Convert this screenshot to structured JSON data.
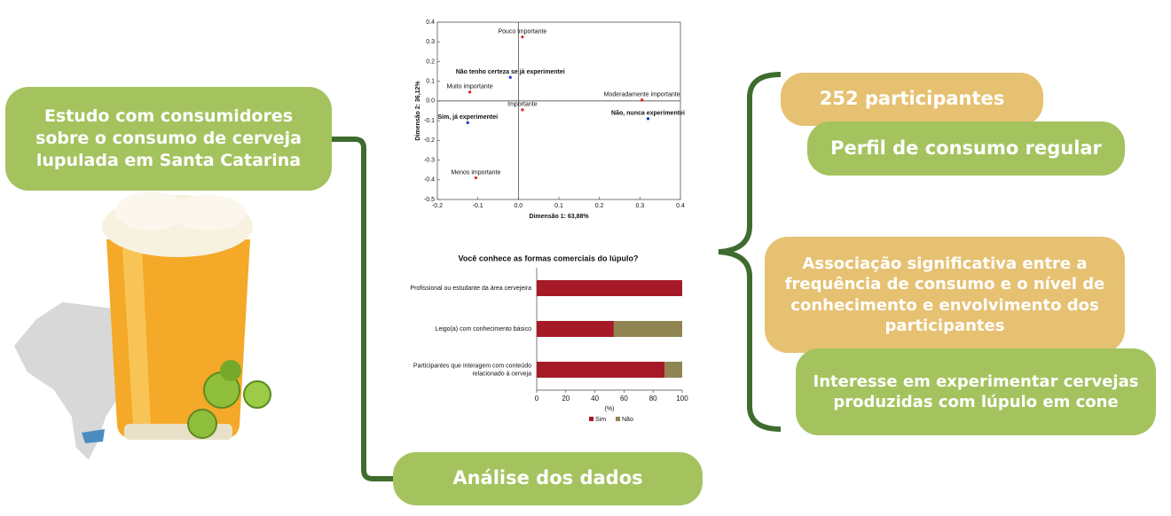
{
  "left_box": "Estudo com consumidores sobre o consumo de cerveja lupulada em Santa Catarina",
  "bottom_box": "Análise dos dados",
  "results": [
    "252 participantes",
    "Perfil de consumo regular",
    "Associação significativa entre a frequência de consumo e o nível de conhecimento e envolvimento dos participantes",
    "Interesse em experimentar cervejas produzidas com lúpulo em cone"
  ],
  "chart_data": [
    {
      "type": "scatter",
      "xlabel": "Dimensão 1: 63,88%",
      "ylabel": "Dimensão 2: 36,12%",
      "xlim": [
        -0.2,
        0.4
      ],
      "xticks": [
        -0.2,
        -0.1,
        {
          "value": 0,
          "label": "0.0"
        },
        0.1,
        0.2,
        0.3,
        0.4
      ],
      "ylim": [
        -0.5,
        0.4
      ],
      "yticks": [
        -0.5,
        -0.4,
        -0.3,
        -0.2,
        -0.1,
        {
          "value": 0,
          "label": "0.0"
        },
        0.1,
        0.2,
        0.3,
        0.4
      ],
      "series": [
        {
          "color": "#e02020",
          "bold_labels": false,
          "point_labels": [
            "Pouco importante",
            "Muito importante",
            "Importante",
            "Moderadamente importante",
            "Menos importante"
          ],
          "x": [
            0.01,
            -0.12,
            0.01,
            0.305,
            -0.105
          ],
          "y": [
            0.325,
            0.045,
            -0.045,
            0.005,
            -0.39
          ]
        },
        {
          "color": "#1a2fd0",
          "bold_labels": true,
          "point_labels": [
            "Não tenho certeza se já experimentei",
            "Sim, já experimentei",
            "Não, nunca experimentei"
          ],
          "x": [
            -0.02,
            -0.125,
            0.32
          ],
          "y": [
            0.12,
            -0.11,
            -0.09
          ]
        }
      ]
    },
    {
      "type": "stacked_barh",
      "title": "Você conhece as formas comerciais do lúpulo?",
      "xlabel": "(%)",
      "categories": [
        "Profissional ou estudante da área cervejeira",
        "Leigo(a) com conhecimento básico",
        "Participantes que interagem com conteúdo relacionado à cerveja"
      ],
      "series": [
        {
          "name": "Sim",
          "color": "#a51a26",
          "values": [
            100,
            53,
            88
          ]
        },
        {
          "name": "Não",
          "color": "#8f8452",
          "values": [
            0,
            47,
            12
          ]
        }
      ],
      "xlim": [
        0,
        100
      ],
      "xticks": [
        0,
        20,
        40,
        60,
        80,
        100
      ]
    }
  ]
}
